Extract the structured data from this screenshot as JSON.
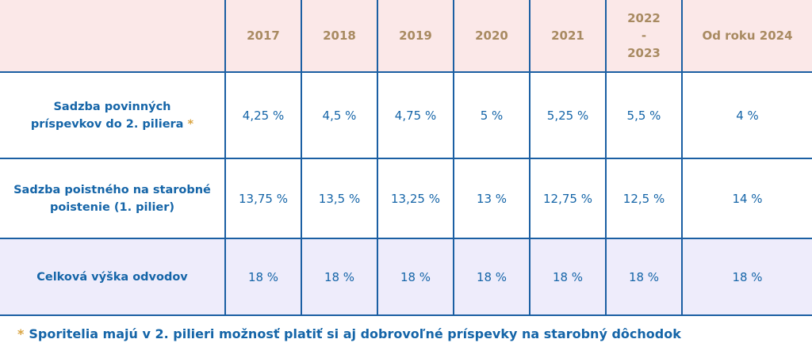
{
  "header": {
    "years": [
      "2017",
      "2018",
      "2019",
      "2020",
      "2021"
    ],
    "y2022_top": "2022",
    "y2022_mid": "-",
    "y2022_bottom": "2023",
    "last": "Od roku 2024"
  },
  "rows": [
    {
      "label_line1": "Sadzba povinných",
      "label_line2": "príspevkov do 2. piliera",
      "star": "*",
      "values": [
        "4,25 %",
        "4,5 %",
        "4,75 %",
        "5 %",
        "5,25 %",
        "5,5 %",
        "4 %"
      ]
    },
    {
      "label_line1": "Sadzba poistného na starobné",
      "label_line2": "poistenie (1. pilier)",
      "values": [
        "13,75 %",
        "13,5 %",
        "13,25 %",
        "13 %",
        "12,75 %",
        "12,5 %",
        "14 %"
      ]
    },
    {
      "label_line1": "Celková výška odvodov",
      "values": [
        "18 %",
        "18 %",
        "18 %",
        "18 %",
        "18 %",
        "18 %",
        "18 %"
      ]
    }
  ],
  "footnote": {
    "star": "*",
    "text": "Sporitelia majú v 2. pilieri možnosť platiť si aj dobrovoľné príspevky na starobný dôchodok"
  },
  "colors": {
    "accent_blue": "#1565a8",
    "gold": "#a88a61",
    "header_bg": "#fbe8e8",
    "total_row_bg": "#eeecfb"
  }
}
